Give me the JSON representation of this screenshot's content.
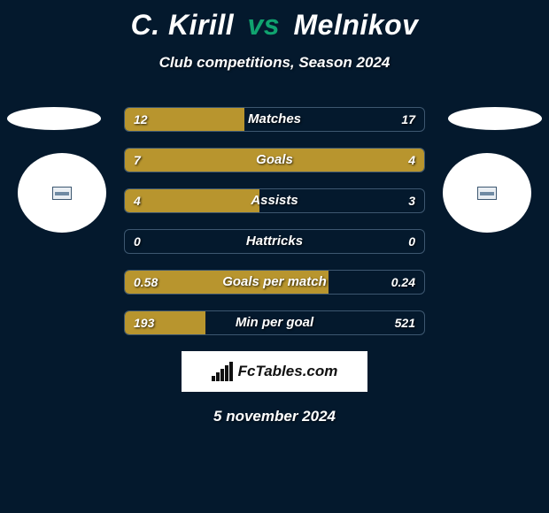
{
  "colors": {
    "background": "#04192d",
    "accent_green": "#10a36f",
    "bar_fill": "#b8952e",
    "bar_border": "#3d5770",
    "text": "#ffffff",
    "brand_bg": "#ffffff",
    "brand_text": "#111111"
  },
  "header": {
    "player1": "C. Kirill",
    "vs": "vs",
    "player2": "Melnikov",
    "subtitle": "Club competitions, Season 2024"
  },
  "bars": [
    {
      "label": "Matches",
      "left_value": "12",
      "right_value": "17",
      "left_pct": 40,
      "right_pct": 0
    },
    {
      "label": "Goals",
      "left_value": "7",
      "right_value": "4",
      "left_pct": 60,
      "right_pct": 40
    },
    {
      "label": "Assists",
      "left_value": "4",
      "right_value": "3",
      "left_pct": 45,
      "right_pct": 0
    },
    {
      "label": "Hattricks",
      "left_value": "0",
      "right_value": "0",
      "left_pct": 0,
      "right_pct": 0
    },
    {
      "label": "Goals per match",
      "left_value": "0.58",
      "right_value": "0.24",
      "left_pct": 68,
      "right_pct": 0
    },
    {
      "label": "Min per goal",
      "left_value": "193",
      "right_value": "521",
      "left_pct": 27,
      "right_pct": 0
    }
  ],
  "brand": "FcTables.com",
  "date": "5 november 2024"
}
